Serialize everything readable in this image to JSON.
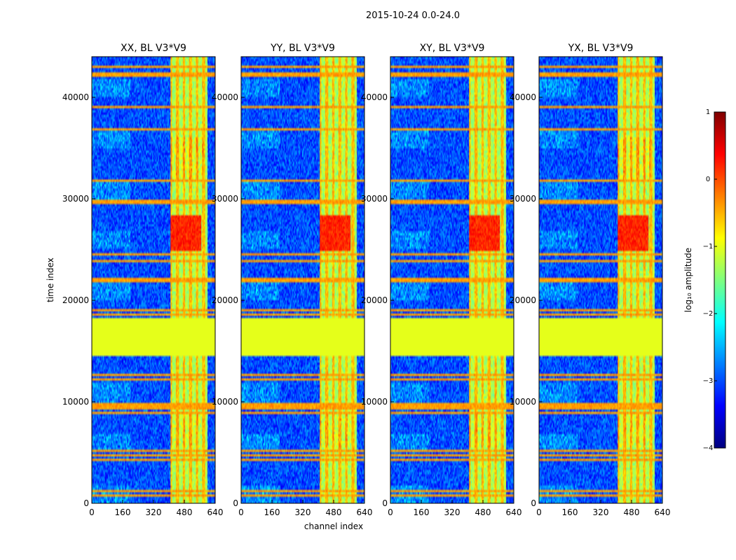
{
  "chart_data": {
    "type": "heatmap",
    "suptitle": "2015-10-24 0.0-24.0",
    "xlabel": "channel index",
    "ylabel": "time index",
    "xlim": [
      0,
      640
    ],
    "ylim": [
      0,
      44000
    ],
    "xticks": [
      "0",
      "160",
      "320",
      "480",
      "640"
    ],
    "yticks": [
      "0",
      "10000",
      "20000",
      "30000",
      "40000"
    ],
    "panels": [
      {
        "title": "XX, BL V3*V9",
        "pol": "XX"
      },
      {
        "title": "YY, BL V3*V9",
        "pol": "YY"
      },
      {
        "title": "XY, BL V3*V9",
        "pol": "XY"
      },
      {
        "title": "YX, BL V3*V9",
        "pol": "YX"
      }
    ],
    "features": {
      "flagged_block_time": [
        14500,
        18200
      ],
      "flagged_block_value": -1.0,
      "rfi_band_channels": [
        410,
        600
      ],
      "strong_burst_time": [
        24800,
        28300
      ],
      "strong_burst_value": 0.5,
      "background_value": -3.0,
      "horizontal_lines_time": [
        800,
        1200,
        4300,
        4800,
        5200,
        8900,
        9400,
        9700,
        12200,
        12700,
        18600,
        19000,
        22000,
        23800,
        24500,
        29700,
        31800,
        36900,
        39000,
        42100,
        42400,
        43000
      ]
    },
    "colorbar": {
      "label": "log₁₀ amplitude",
      "range": [
        -4,
        1
      ],
      "ticks": [
        "1",
        "0",
        "−1",
        "−2",
        "−3",
        "−4"
      ],
      "colormap": "jet",
      "colors": [
        "#00007f",
        "#0000ff",
        "#007fff",
        "#00ffff",
        "#7fff7f",
        "#ffff00",
        "#ff7f00",
        "#ff0000",
        "#7f0000"
      ]
    }
  }
}
